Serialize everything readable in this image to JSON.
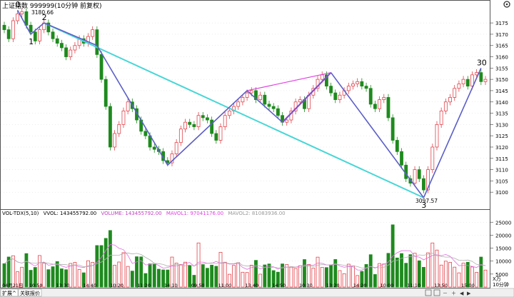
{
  "window": {
    "title": "上证指数 999999(10分钟 前复权)",
    "gear_icon": "gear-icon"
  },
  "price_axis": {
    "labels": [
      "3175",
      "3170",
      "3165",
      "3160",
      "3155",
      "3150",
      "3145",
      "3140",
      "3135",
      "3130",
      "3125",
      "3120",
      "3115",
      "3110",
      "3105",
      "3100"
    ]
  },
  "price_annotations": {
    "high_label": "3180.66",
    "low_label": "3097.57",
    "wave_labels": [
      "0",
      "1",
      "2",
      "3",
      "30"
    ]
  },
  "volume_panel": {
    "indicator": "VOL-TDX(5,10)",
    "vvol": "VVOL: 143455792.00",
    "volume": "VOLUME: 143455792.00",
    "mavol1": "MAVOL1: 97041176.00",
    "mavol2": "MAVOL2: 81083936.00",
    "axis_labels": [
      "25000",
      "20000",
      "15000",
      "10000",
      "5000"
    ],
    "unit_label": "X万"
  },
  "time_axis": {
    "labels": [
      "04月21日",
      "10:50",
      "13:30",
      "14:40",
      "10:20",
      "11:20",
      "14:10",
      "09:50",
      "11:00",
      "13:40",
      "14:50",
      "10:30",
      "13:20",
      "14:20",
      "10:00",
      "11:10",
      "13:50",
      "15:00"
    ],
    "period_label": "10分钟"
  },
  "bottom_tabs": [
    "扩展^",
    "关联报价"
  ],
  "colors": {
    "up": "#e0454d",
    "down": "#1e8a1e",
    "wave": "#5b5fc7",
    "cyan": "#48d6d6",
    "magenta": "#e040e0",
    "ma1": "#e070e0",
    "ma2": "#b0b0b0"
  },
  "chart_data": {
    "type": "candlestick",
    "x_unit": "10-minute bar index",
    "y_axis": {
      "min": 3095,
      "max": 3182
    },
    "candles_close": [
      3172,
      3168,
      3176,
      3179,
      3180,
      3174,
      3171,
      3167,
      3172,
      3175,
      3171,
      3168,
      3166,
      3164,
      3160,
      3163,
      3165,
      3168,
      3166,
      3169,
      3172,
      3161,
      3150,
      3138,
      3120,
      3126,
      3130,
      3136,
      3140,
      3137,
      3132,
      3127,
      3125,
      3120,
      3119,
      3118,
      3114,
      3113,
      3117,
      3122,
      3128,
      3131,
      3130,
      3129,
      3134,
      3133,
      3132,
      3126,
      3123,
      3129,
      3134,
      3136,
      3138,
      3140,
      3142,
      3144,
      3145,
      3141,
      3143,
      3139,
      3138,
      3137,
      3134,
      3131,
      3132,
      3136,
      3140,
      3141,
      3137,
      3143,
      3146,
      3150,
      3152,
      3147,
      3144,
      3141,
      3143,
      3145,
      3147,
      3148,
      3149,
      3147,
      3146,
      3139,
      3137,
      3141,
      3142,
      3133,
      3123,
      3118,
      3112,
      3106,
      3104,
      3110,
      3106,
      3101,
      3110,
      3120,
      3130,
      3136,
      3140,
      3142,
      3146,
      3148,
      3150,
      3147,
      3152,
      3153,
      3149,
      3150
    ],
    "wave_points": [
      {
        "label": "0",
        "bar": 3,
        "price": 3180.66
      },
      {
        "label": "1",
        "bar": 6,
        "price": 3170
      },
      {
        "label": "2",
        "bar": 9,
        "price": 3175
      },
      {
        "bar": 21,
        "price": 3165
      },
      {
        "bar": 37,
        "price": 3112
      },
      {
        "bar": 55,
        "price": 3145
      },
      {
        "bar": 63,
        "price": 3131
      },
      {
        "bar": 74,
        "price": 3153
      },
      {
        "label": "3",
        "bar": 95,
        "price": 3097.57
      },
      {
        "label": "30",
        "bar": 108,
        "price": 3155
      }
    ],
    "volume_scale_max": 27000
  }
}
